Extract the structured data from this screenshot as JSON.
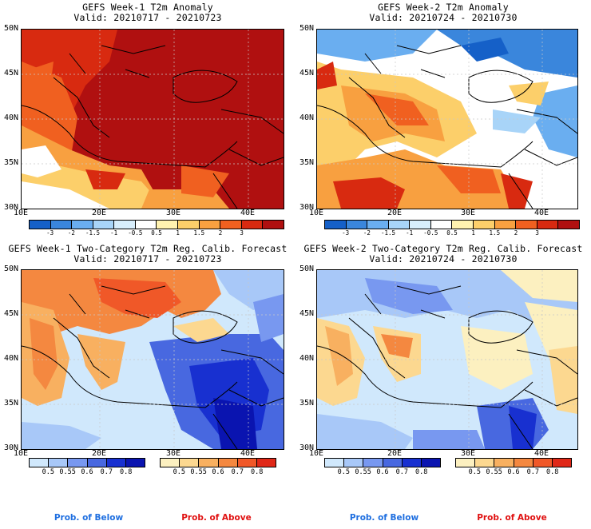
{
  "panels": [
    {
      "title1": "GEFS Week-1 T2m Anomaly",
      "title2": "Valid: 20210717 - 20210723",
      "type": "anomaly",
      "dominant": "warm"
    },
    {
      "title1": "GEFS Week-2 T2m Anomaly",
      "title2": "Valid: 20210724 - 20210730",
      "type": "anomaly",
      "dominant": "mixed"
    },
    {
      "title1": "GEFS Week-1 Two-Category T2m Reg. Calib. Forecast",
      "title2": "Valid: 20210717 - 20210723",
      "type": "prob",
      "dominant": "above"
    },
    {
      "title1": "GEFS Week-2 Two-Category T2m Reg. Calib. Forecast",
      "title2": "Valid: 20210724 - 20210730",
      "type": "prob",
      "dominant": "below"
    }
  ],
  "axes": {
    "lat_labels": [
      "50N",
      "45N",
      "40N",
      "35N",
      "30N"
    ],
    "lon_labels": [
      "10E",
      "20E",
      "30E",
      "40E"
    ]
  },
  "anomaly_colorbar": {
    "labels": [
      "-3",
      "-2",
      "-1.5",
      "-1",
      "-0.5",
      "0.5",
      "1",
      "1.5",
      "2",
      "3"
    ],
    "colors": [
      "#1560c8",
      "#3a86dc",
      "#6aaef0",
      "#a8d4f8",
      "#d8eefc",
      "#ffffff",
      "#fff2b0",
      "#fccf6a",
      "#f8a040",
      "#f06020",
      "#d82a10",
      "#b01010"
    ]
  },
  "prob_colorbar_below": {
    "labels": [
      "0.5",
      "0.55",
      "0.6",
      "0.7",
      "0.8"
    ],
    "colors": [
      "#d0e8fc",
      "#a8c8f8",
      "#7898f0",
      "#4868e0",
      "#1830d0",
      "#0a14b0"
    ]
  },
  "prob_colorbar_above": {
    "labels": [
      "0.5",
      "0.55",
      "0.6",
      "0.7",
      "0.8"
    ],
    "colors": [
      "#fcf0c0",
      "#fcd890",
      "#f8b060",
      "#f48840",
      "#f05828",
      "#e02818"
    ]
  },
  "footer": {
    "below_label": "Prob. of Below",
    "above_label": "Prob. of Above"
  }
}
